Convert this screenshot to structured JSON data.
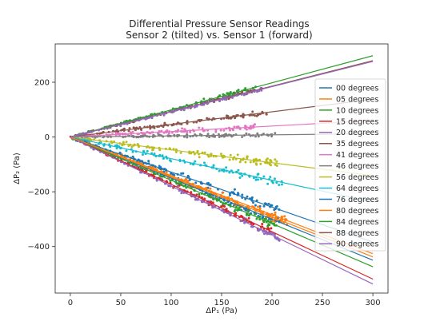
{
  "chart_data": {
    "type": "scatter",
    "title": "Differential Pressure Sensor Readings",
    "subtitle": "Sensor 2 (tilted) vs. Sensor 1 (forward)",
    "xlabel": "ΔP₁ (Pa)",
    "ylabel": "ΔP₂ (Pa)",
    "xlim": [
      -15,
      315
    ],
    "ylim": [
      -570,
      340
    ],
    "xticks": [
      0,
      50,
      100,
      150,
      200,
      250,
      300
    ],
    "yticks": [
      -400,
      -200,
      0,
      200
    ],
    "xtick_labels": [
      "0",
      "50",
      "100",
      "150",
      "200",
      "250",
      "300"
    ],
    "ytick_labels": [
      "−400",
      "−200",
      "0",
      "200"
    ],
    "grid": false,
    "legend_position": "right",
    "fit_x_range": [
      0,
      300
    ],
    "series": [
      {
        "name": "00 degrees",
        "color": "#1f77b4",
        "slope": -1.5,
        "x_max": 210,
        "spread": 9
      },
      {
        "name": "05 degrees",
        "color": "#ff7f0e",
        "slope": -1.46,
        "x_max": 215,
        "spread": 9
      },
      {
        "name": "10 degrees",
        "color": "#2ca02c",
        "slope": -1.58,
        "x_max": 205,
        "spread": 9
      },
      {
        "name": "15 degrees",
        "color": "#d62728",
        "slope": -1.73,
        "x_max": 200,
        "spread": 9
      },
      {
        "name": "20 degrees",
        "color": "#9467bd",
        "slope": -1.79,
        "x_max": 210,
        "spread": 9
      },
      {
        "name": "35 degrees",
        "color": "#8c564b",
        "slope": 0.46,
        "x_max": 195,
        "spread": 7
      },
      {
        "name": "41 degrees",
        "color": "#e377c2",
        "slope": 0.2,
        "x_max": 185,
        "spread": 7
      },
      {
        "name": "46 degrees",
        "color": "#7f7f7f",
        "slope": 0.04,
        "x_max": 205,
        "spread": 5
      },
      {
        "name": "56 degrees",
        "color": "#bcbd22",
        "slope": -0.47,
        "x_max": 205,
        "spread": 12
      },
      {
        "name": "64 degrees",
        "color": "#17becf",
        "slope": -0.79,
        "x_max": 210,
        "spread": 12
      },
      {
        "name": "76 degrees",
        "color": "#1f77b4",
        "slope": -1.28,
        "x_max": 210,
        "spread": 10
      },
      {
        "name": "80 degrees",
        "color": "#ff7f0e",
        "slope": -1.42,
        "x_max": 215,
        "spread": 10
      },
      {
        "name": "84 degrees",
        "color": "#2ca02c",
        "slope": 0.99,
        "x_max": 185,
        "spread": 6
      },
      {
        "name": "88 degrees",
        "color": "#8c564b",
        "slope": 0.93,
        "x_max": 185,
        "spread": 6
      },
      {
        "name": "90 degrees",
        "color": "#9467bd",
        "slope": 0.92,
        "x_max": 190,
        "spread": 6
      }
    ]
  }
}
